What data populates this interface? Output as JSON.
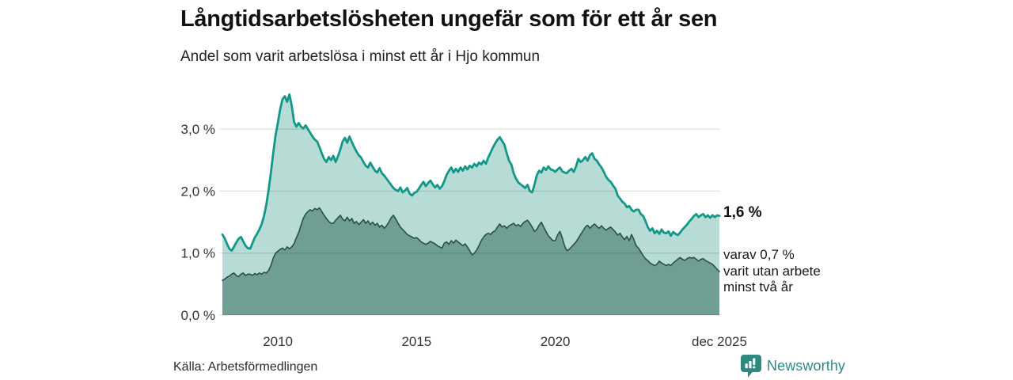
{
  "header": {
    "title": "Långtidsarbetslösheten ungefär som för ett år sen",
    "subtitle": "Andel som varit arbetslösa i minst ett år i Hjo kommun"
  },
  "footer": {
    "source": "Källa: Arbetsförmedlingen",
    "brand_name": "Newsworthy"
  },
  "colors": {
    "brand_teal": "#2e8a80",
    "axis_text": "#333333",
    "grid": "rgba(0,0,0,0.11)"
  },
  "chart_data": {
    "type": "area",
    "title": "Långtidsarbetslösheten ungefär som för ett år sen",
    "subtitle": "Andel som varit arbetslösa i minst ett år i Hjo kommun",
    "unit": "%",
    "x_start": "2008-01",
    "x_end": "2025-12",
    "points_per_year": 12,
    "ylim": [
      0,
      3.6
    ],
    "grid": true,
    "y_ticks": [
      {
        "value": 0,
        "label": "0,0 %"
      },
      {
        "value": 1,
        "label": "1,0 %"
      },
      {
        "value": 2,
        "label": "2,0 %"
      },
      {
        "value": 3,
        "label": "3,0 %"
      }
    ],
    "x_ticks": [
      {
        "index": 24,
        "label": "2010"
      },
      {
        "index": 84,
        "label": "2015"
      },
      {
        "index": 144,
        "label": "2020"
      },
      {
        "index": 215,
        "label": "dec 2025"
      }
    ],
    "series": [
      {
        "name": "Andel arbetslösa minst ett år",
        "line_color": "#12988a",
        "fill_color": "#b7dcd5",
        "line_width": 2.8,
        "values": [
          1.3,
          1.24,
          1.15,
          1.07,
          1.04,
          1.1,
          1.17,
          1.23,
          1.26,
          1.19,
          1.12,
          1.08,
          1.07,
          1.16,
          1.25,
          1.31,
          1.38,
          1.47,
          1.6,
          1.78,
          2.02,
          2.3,
          2.62,
          2.9,
          3.1,
          3.32,
          3.48,
          3.53,
          3.44,
          3.56,
          3.38,
          3.12,
          3.04,
          3.1,
          3.04,
          3.01,
          3.06,
          3.0,
          2.94,
          2.88,
          2.83,
          2.8,
          2.71,
          2.61,
          2.52,
          2.47,
          2.55,
          2.5,
          2.57,
          2.47,
          2.56,
          2.67,
          2.8,
          2.86,
          2.78,
          2.88,
          2.79,
          2.71,
          2.64,
          2.58,
          2.54,
          2.47,
          2.41,
          2.38,
          2.46,
          2.39,
          2.33,
          2.3,
          2.37,
          2.29,
          2.25,
          2.2,
          2.15,
          2.1,
          2.05,
          2.02,
          2.0,
          2.06,
          1.98,
          2.01,
          2.05,
          1.96,
          1.93,
          1.97,
          1.99,
          2.04,
          2.1,
          2.15,
          2.08,
          2.13,
          2.17,
          2.11,
          2.06,
          2.1,
          2.04,
          2.08,
          2.16,
          2.26,
          2.33,
          2.38,
          2.3,
          2.36,
          2.31,
          2.38,
          2.33,
          2.4,
          2.35,
          2.41,
          2.38,
          2.44,
          2.4,
          2.46,
          2.43,
          2.49,
          2.44,
          2.54,
          2.62,
          2.7,
          2.77,
          2.83,
          2.87,
          2.81,
          2.75,
          2.61,
          2.49,
          2.43,
          2.29,
          2.2,
          2.14,
          2.11,
          2.08,
          2.05,
          2.1,
          2.0,
          1.98,
          2.1,
          2.25,
          2.33,
          2.3,
          2.38,
          2.34,
          2.4,
          2.35,
          2.34,
          2.31,
          2.35,
          2.38,
          2.32,
          2.3,
          2.29,
          2.33,
          2.36,
          2.31,
          2.4,
          2.52,
          2.47,
          2.5,
          2.55,
          2.49,
          2.58,
          2.61,
          2.52,
          2.49,
          2.43,
          2.38,
          2.31,
          2.23,
          2.18,
          2.15,
          2.09,
          2.04,
          1.93,
          1.88,
          1.83,
          1.8,
          1.74,
          1.76,
          1.7,
          1.67,
          1.7,
          1.7,
          1.63,
          1.6,
          1.52,
          1.42,
          1.36,
          1.4,
          1.32,
          1.36,
          1.31,
          1.38,
          1.33,
          1.32,
          1.35,
          1.28,
          1.34,
          1.31,
          1.29,
          1.33,
          1.38,
          1.42,
          1.46,
          1.51,
          1.55,
          1.6,
          1.63,
          1.58,
          1.61,
          1.63,
          1.58,
          1.61,
          1.57,
          1.61,
          1.58,
          1.61,
          1.6
        ]
      },
      {
        "name": "Andel som varit utan arbete minst två år",
        "line_color": "#2d4f48",
        "fill_color": "#6f9e95",
        "line_width": 1.6,
        "values": [
          0.56,
          0.58,
          0.61,
          0.63,
          0.66,
          0.68,
          0.64,
          0.62,
          0.66,
          0.68,
          0.64,
          0.66,
          0.66,
          0.64,
          0.67,
          0.65,
          0.68,
          0.66,
          0.69,
          0.68,
          0.72,
          0.8,
          0.92,
          1.0,
          1.03,
          1.06,
          1.08,
          1.05,
          1.1,
          1.07,
          1.1,
          1.15,
          1.25,
          1.33,
          1.45,
          1.56,
          1.63,
          1.67,
          1.7,
          1.68,
          1.72,
          1.7,
          1.73,
          1.67,
          1.61,
          1.56,
          1.51,
          1.48,
          1.48,
          1.53,
          1.57,
          1.61,
          1.55,
          1.52,
          1.58,
          1.52,
          1.56,
          1.48,
          1.51,
          1.46,
          1.5,
          1.54,
          1.48,
          1.52,
          1.46,
          1.5,
          1.45,
          1.48,
          1.42,
          1.45,
          1.4,
          1.44,
          1.5,
          1.57,
          1.61,
          1.55,
          1.48,
          1.42,
          1.38,
          1.34,
          1.3,
          1.28,
          1.26,
          1.24,
          1.25,
          1.22,
          1.18,
          1.16,
          1.14,
          1.16,
          1.19,
          1.17,
          1.15,
          1.12,
          1.1,
          1.08,
          1.16,
          1.18,
          1.14,
          1.2,
          1.16,
          1.21,
          1.18,
          1.15,
          1.12,
          1.15,
          1.1,
          1.04,
          0.97,
          1.0,
          1.05,
          1.12,
          1.2,
          1.26,
          1.3,
          1.32,
          1.3,
          1.34,
          1.36,
          1.42,
          1.47,
          1.42,
          1.44,
          1.4,
          1.44,
          1.46,
          1.48,
          1.44,
          1.46,
          1.43,
          1.48,
          1.51,
          1.53,
          1.48,
          1.42,
          1.35,
          1.38,
          1.45,
          1.5,
          1.42,
          1.35,
          1.28,
          1.24,
          1.2,
          1.2,
          1.29,
          1.35,
          1.25,
          1.12,
          1.04,
          1.06,
          1.1,
          1.14,
          1.18,
          1.24,
          1.3,
          1.36,
          1.42,
          1.45,
          1.4,
          1.44,
          1.47,
          1.43,
          1.4,
          1.44,
          1.4,
          1.37,
          1.4,
          1.42,
          1.38,
          1.34,
          1.29,
          1.32,
          1.26,
          1.22,
          1.27,
          1.2,
          1.3,
          1.22,
          1.12,
          1.08,
          1.02,
          0.96,
          0.91,
          0.88,
          0.84,
          0.82,
          0.8,
          0.82,
          0.87,
          0.84,
          0.82,
          0.8,
          0.82,
          0.8,
          0.84,
          0.87,
          0.9,
          0.93,
          0.9,
          0.88,
          0.91,
          0.93,
          0.92,
          0.93,
          0.9,
          0.87,
          0.9,
          0.91,
          0.88,
          0.86,
          0.84,
          0.82,
          0.78,
          0.74,
          0.7
        ]
      }
    ],
    "annotations": {
      "latest_value": "1,6 %",
      "note_line1": "varav 0,7 %",
      "note_line2": "varit utan arbete",
      "note_line3": "minst två år"
    }
  }
}
